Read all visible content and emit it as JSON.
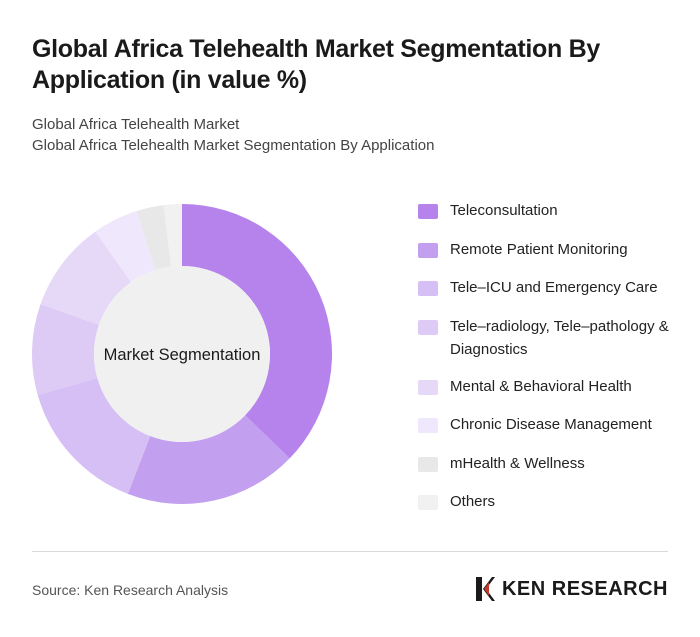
{
  "header": {
    "title": "Global Africa Telehealth Market Segmentation By Application (in value %)",
    "subtitle_line1": "Global Africa Telehealth Market",
    "subtitle_line2": "Global Africa Telehealth Market Segmentation By Application"
  },
  "chart_data": {
    "type": "pie",
    "center_label": "Market Segmentation",
    "categories": [
      "Teleconsultation",
      "Remote Patient Monitoring",
      "Tele–ICU and Emergency Care",
      "Tele–radiology, Tele–pathology & Diagnostics",
      "Mental & Behavioral Health",
      "Chronic Disease Management",
      "mHealth & Wellness",
      "Others"
    ],
    "values": [
      38,
      19,
      15,
      10,
      10,
      5,
      3,
      2
    ],
    "colors": [
      "#b583eb",
      "#c39ff0",
      "#d5bff4",
      "#ddcbf6",
      "#e6d9f8",
      "#efe7fb",
      "#e8e8e8",
      "#f1f1f1"
    ],
    "legend_position": "right"
  },
  "footer": {
    "source": "Source: Ken Research Analysis",
    "logo_text": "KEN RESEARCH"
  }
}
